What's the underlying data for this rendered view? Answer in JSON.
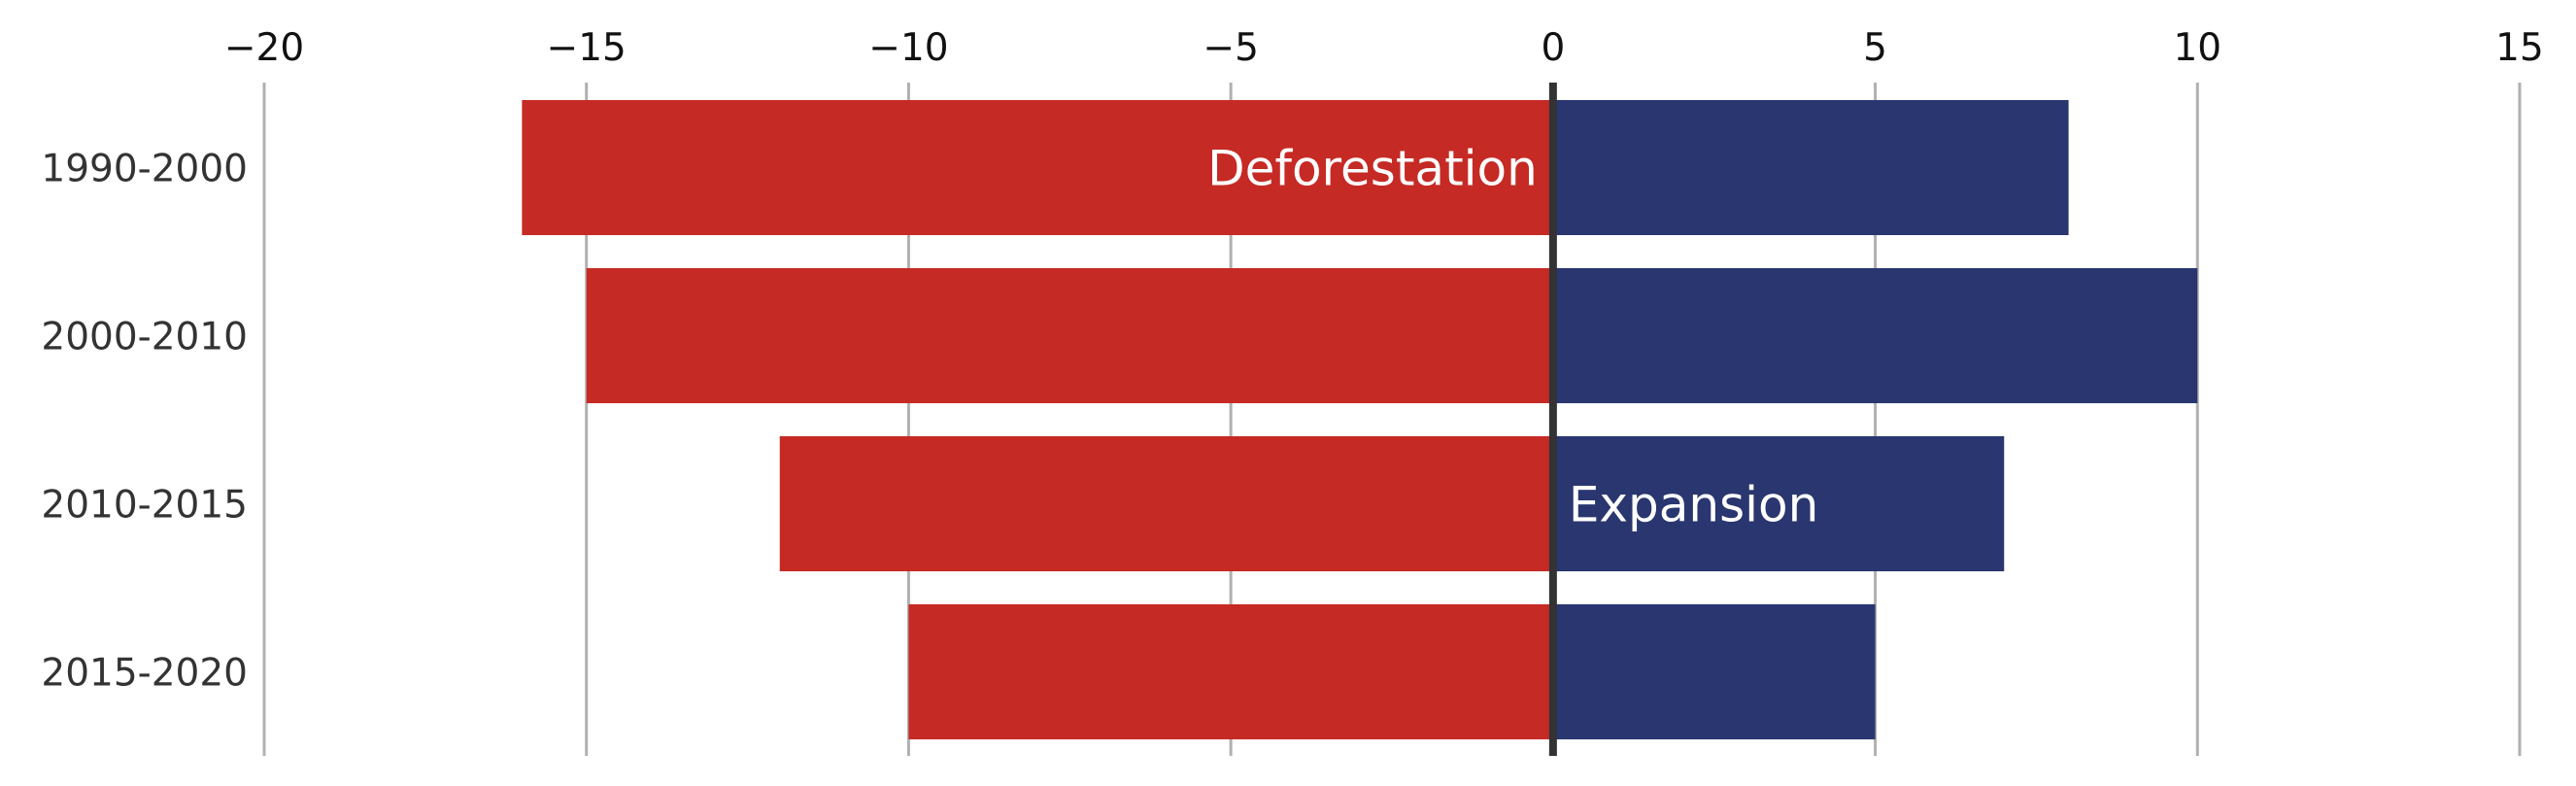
{
  "chart_data": {
    "type": "bar",
    "orientation": "horizontal",
    "stacking": "diverging",
    "title": "",
    "xlabel": "",
    "ylabel": "",
    "categories": [
      "1990-2000",
      "2000-2010",
      "2010-2015",
      "2015-2020"
    ],
    "series": [
      {
        "key": "deforestation",
        "color": "#c62a25",
        "values": [
          -16,
          -15,
          -12,
          -10
        ]
      },
      {
        "key": "expansion",
        "color": "#2a366f",
        "values": [
          8,
          10,
          7,
          5
        ]
      }
    ],
    "xlim": [
      -20,
      15
    ],
    "xticks": [
      -20,
      -15,
      -10,
      -5,
      0,
      5,
      10,
      15
    ],
    "xtick_labels": [
      "−20",
      "−15",
      "−10",
      "−5",
      "0",
      "5",
      "10",
      "15"
    ],
    "x_axis_position": "top",
    "grid": "vertical",
    "grid_color": "#b0b0b0",
    "zero_line_color": "#333333",
    "legend": "none",
    "annotations": [
      {
        "text": "Deforestation",
        "category": "1990-2000",
        "series": "deforestation",
        "anchor": "end",
        "x": 0
      },
      {
        "text": "Expansion",
        "category": "2010-2015",
        "series": "expansion",
        "anchor": "start",
        "x": 0
      }
    ]
  }
}
